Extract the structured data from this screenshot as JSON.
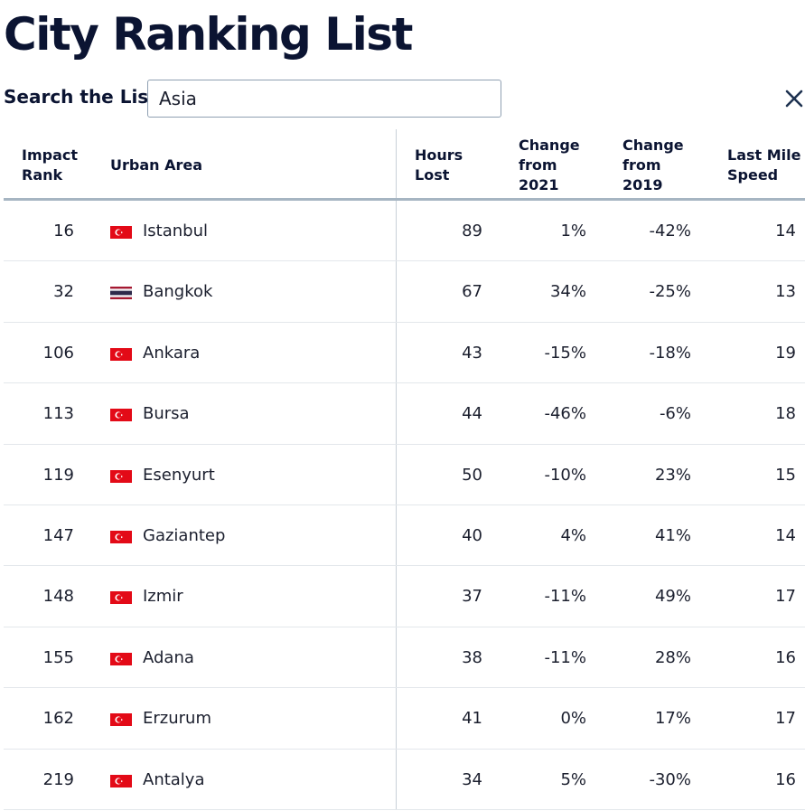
{
  "page": {
    "title": "City Ranking List"
  },
  "search": {
    "label": "Search the List",
    "value": "Asia",
    "placeholder": "",
    "clear_icon": "close-icon"
  },
  "table": {
    "columns": [
      {
        "key": "rank",
        "label": "Impact\nRank"
      },
      {
        "key": "city",
        "label": "Urban Area"
      },
      {
        "key": "hours",
        "label": "Hours\nLost"
      },
      {
        "key": "c21",
        "label": "Change\nfrom\n2021"
      },
      {
        "key": "c19",
        "label": "Change\nfrom\n2019"
      },
      {
        "key": "speed",
        "label": "Last Mile\nSpeed"
      }
    ],
    "rows": [
      {
        "rank": "16",
        "flag": "turkey-flag-icon",
        "city": "Istanbul",
        "hours": "89",
        "c21": "1%",
        "c19": "-42%",
        "speed": "14"
      },
      {
        "rank": "32",
        "flag": "thailand-flag-icon",
        "city": "Bangkok",
        "hours": "67",
        "c21": "34%",
        "c19": "-25%",
        "speed": "13"
      },
      {
        "rank": "106",
        "flag": "turkey-flag-icon",
        "city": "Ankara",
        "hours": "43",
        "c21": "-15%",
        "c19": "-18%",
        "speed": "19"
      },
      {
        "rank": "113",
        "flag": "turkey-flag-icon",
        "city": "Bursa",
        "hours": "44",
        "c21": "-46%",
        "c19": "-6%",
        "speed": "18"
      },
      {
        "rank": "119",
        "flag": "turkey-flag-icon",
        "city": "Esenyurt",
        "hours": "50",
        "c21": "-10%",
        "c19": "23%",
        "speed": "15"
      },
      {
        "rank": "147",
        "flag": "turkey-flag-icon",
        "city": "Gaziantep",
        "hours": "40",
        "c21": "4%",
        "c19": "41%",
        "speed": "14"
      },
      {
        "rank": "148",
        "flag": "turkey-flag-icon",
        "city": "Izmir",
        "hours": "37",
        "c21": "-11%",
        "c19": "49%",
        "speed": "17"
      },
      {
        "rank": "155",
        "flag": "turkey-flag-icon",
        "city": "Adana",
        "hours": "38",
        "c21": "-11%",
        "c19": "28%",
        "speed": "16"
      },
      {
        "rank": "162",
        "flag": "turkey-flag-icon",
        "city": "Erzurum",
        "hours": "41",
        "c21": "0%",
        "c19": "17%",
        "speed": "17"
      },
      {
        "rank": "219",
        "flag": "turkey-flag-icon",
        "city": "Antalya",
        "hours": "34",
        "c21": "5%",
        "c19": "-30%",
        "speed": "16"
      }
    ]
  },
  "colors": {
    "title": "#0b1432",
    "text": "#1b1f2e",
    "header_rule": "#a6b5c2",
    "row_rule": "#e3e7eb",
    "turkey_red": "#e30a17",
    "thailand_red": "#a51931",
    "thailand_blue": "#2d2a4a"
  }
}
